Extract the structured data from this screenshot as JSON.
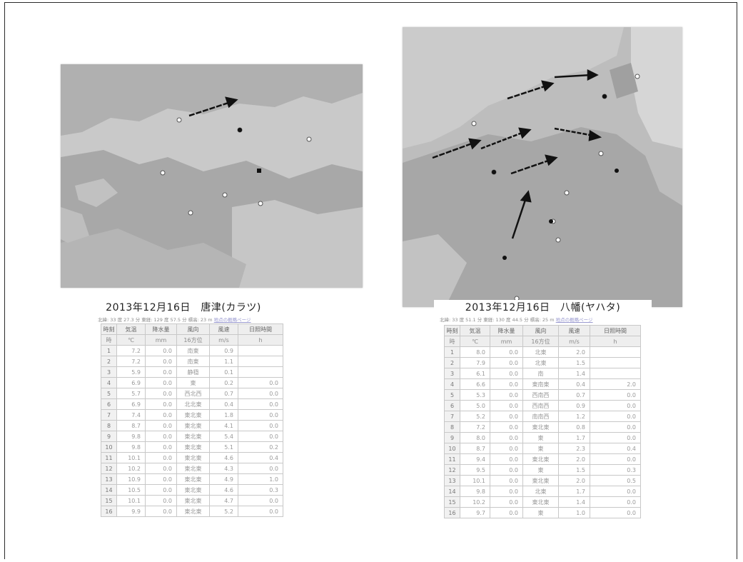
{
  "panels": [
    {
      "title": "2013年12月16日　唐津(カラツ)",
      "subtitle_text": "北緯: 33 度 27.3 分  東経: 129 度 57.5 分  標高: 23 m",
      "subtitle_link": "地点の概略ページ",
      "columns": [
        "時刻",
        "気温",
        "降水量",
        "風向",
        "風速",
        "日照時間"
      ],
      "units": [
        "時",
        "℃",
        "mm",
        "16方位",
        "m/s",
        "h"
      ],
      "rows": [
        [
          "1",
          "7.2",
          "0.0",
          "南東",
          "0.9",
          ""
        ],
        [
          "2",
          "7.2",
          "0.0",
          "南東",
          "1.1",
          ""
        ],
        [
          "3",
          "5.9",
          "0.0",
          "静穏",
          "0.1",
          ""
        ],
        [
          "4",
          "6.9",
          "0.0",
          "東",
          "0.2",
          "0.0"
        ],
        [
          "5",
          "5.7",
          "0.0",
          "西北西",
          "0.7",
          "0.0"
        ],
        [
          "6",
          "6.9",
          "0.0",
          "北北東",
          "0.4",
          "0.0"
        ],
        [
          "7",
          "7.4",
          "0.0",
          "東北東",
          "1.8",
          "0.0"
        ],
        [
          "8",
          "8.7",
          "0.0",
          "東北東",
          "4.1",
          "0.0"
        ],
        [
          "9",
          "9.8",
          "0.0",
          "東北東",
          "5.4",
          "0.0"
        ],
        [
          "10",
          "9.8",
          "0.0",
          "東北東",
          "5.1",
          "0.2"
        ],
        [
          "11",
          "10.1",
          "0.0",
          "東北東",
          "4.6",
          "0.4"
        ],
        [
          "12",
          "10.2",
          "0.0",
          "東北東",
          "4.3",
          "0.0"
        ],
        [
          "13",
          "10.9",
          "0.0",
          "東北東",
          "4.9",
          "1.0"
        ],
        [
          "14",
          "10.5",
          "0.0",
          "東北東",
          "4.6",
          "0.3"
        ],
        [
          "15",
          "10.1",
          "0.0",
          "東北東",
          "4.7",
          "0.0"
        ],
        [
          "16",
          "9.9",
          "0.0",
          "東北東",
          "5.2",
          "0.0"
        ]
      ]
    },
    {
      "title": "2013年12月16日　八幡(ヤハタ)",
      "subtitle_text": "北緯: 33 度 51.1 分  東経: 130 度 44.5 分  標高: 25 m",
      "subtitle_link": "地点の概略ページ",
      "columns": [
        "時刻",
        "気温",
        "降水量",
        "風向",
        "風速",
        "日照時間"
      ],
      "units": [
        "時",
        "℃",
        "mm",
        "16方位",
        "m/s",
        "h"
      ],
      "rows": [
        [
          "1",
          "8.0",
          "0.0",
          "北東",
          "2.0",
          ""
        ],
        [
          "2",
          "7.9",
          "0.0",
          "北東",
          "1.5",
          ""
        ],
        [
          "3",
          "6.1",
          "0.0",
          "南",
          "1.4",
          ""
        ],
        [
          "4",
          "6.6",
          "0.0",
          "東南東",
          "0.4",
          "2.0"
        ],
        [
          "5",
          "5.3",
          "0.0",
          "西南西",
          "0.7",
          "0.0"
        ],
        [
          "6",
          "5.0",
          "0.0",
          "西南西",
          "0.9",
          "0.0"
        ],
        [
          "7",
          "5.2",
          "0.0",
          "南南西",
          "1.2",
          "0.0"
        ],
        [
          "8",
          "7.2",
          "0.0",
          "東北東",
          "0.8",
          "0.0"
        ],
        [
          "9",
          "8.0",
          "0.0",
          "東",
          "1.7",
          "0.0"
        ],
        [
          "10",
          "8.7",
          "0.0",
          "東",
          "2.3",
          "0.4"
        ],
        [
          "11",
          "9.4",
          "0.0",
          "東北東",
          "2.0",
          "0.0"
        ],
        [
          "12",
          "9.5",
          "0.0",
          "東",
          "1.5",
          "0.3"
        ],
        [
          "13",
          "10.1",
          "0.0",
          "東北東",
          "2.0",
          "0.5"
        ],
        [
          "14",
          "9.8",
          "0.0",
          "北東",
          "1.7",
          "0.0"
        ],
        [
          "15",
          "10.2",
          "0.0",
          "東北東",
          "1.4",
          "0.0"
        ],
        [
          "16",
          "9.7",
          "0.0",
          "東",
          "1.0",
          "0.0"
        ]
      ]
    }
  ],
  "colors": {
    "sea": "#c4c4c4",
    "land": "#a9a9a9",
    "arrow": "#111111",
    "table_border": "#c8c8c8"
  }
}
